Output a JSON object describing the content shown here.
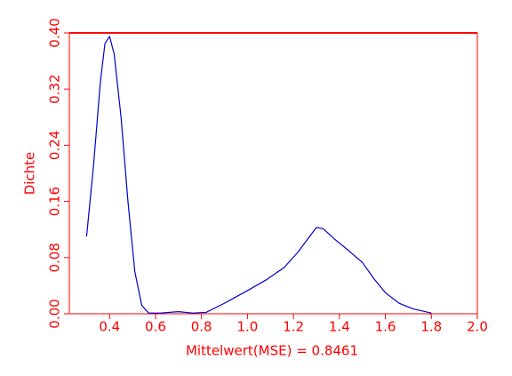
{
  "chart_data": {
    "type": "line",
    "x_label": "Mittelwert(MSE) = 0.8461",
    "y_label": "Dichte",
    "x": [
      0.3,
      0.33,
      0.36,
      0.38,
      0.4,
      0.42,
      0.45,
      0.48,
      0.51,
      0.54,
      0.57,
      0.62,
      0.7,
      0.76,
      0.82,
      0.9,
      1.0,
      1.08,
      1.16,
      1.22,
      1.27,
      1.3,
      1.33,
      1.38,
      1.44,
      1.5,
      1.55,
      1.6,
      1.66,
      1.72,
      1.8
    ],
    "series": [
      {
        "color": "#0000cc",
        "values": [
          0.11,
          0.21,
          0.33,
          0.385,
          0.395,
          0.37,
          0.28,
          0.16,
          0.06,
          0.012,
          0.001,
          0.001,
          0.003,
          0.001,
          0.002,
          0.015,
          0.033,
          0.048,
          0.066,
          0.088,
          0.11,
          0.123,
          0.121,
          0.106,
          0.09,
          0.073,
          0.05,
          0.03,
          0.015,
          0.007,
          0.001
        ]
      }
    ],
    "xlim": [
      0.225,
      2.0
    ],
    "xticks": [
      0.4,
      0.6,
      0.8,
      {
        "value": 1,
        "label": "1.0"
      },
      1.2,
      1.4,
      1.6,
      1.8,
      {
        "value": 2,
        "label": "2.0"
      }
    ],
    "ylim": [
      0,
      0.4
    ],
    "yticks": [
      {
        "value": 0,
        "label": "0.00"
      },
      0.08,
      0.16,
      0.24,
      0.32,
      {
        "value": 0.4,
        "label": "0.40"
      }
    ],
    "axis_color": "#ff0000"
  }
}
